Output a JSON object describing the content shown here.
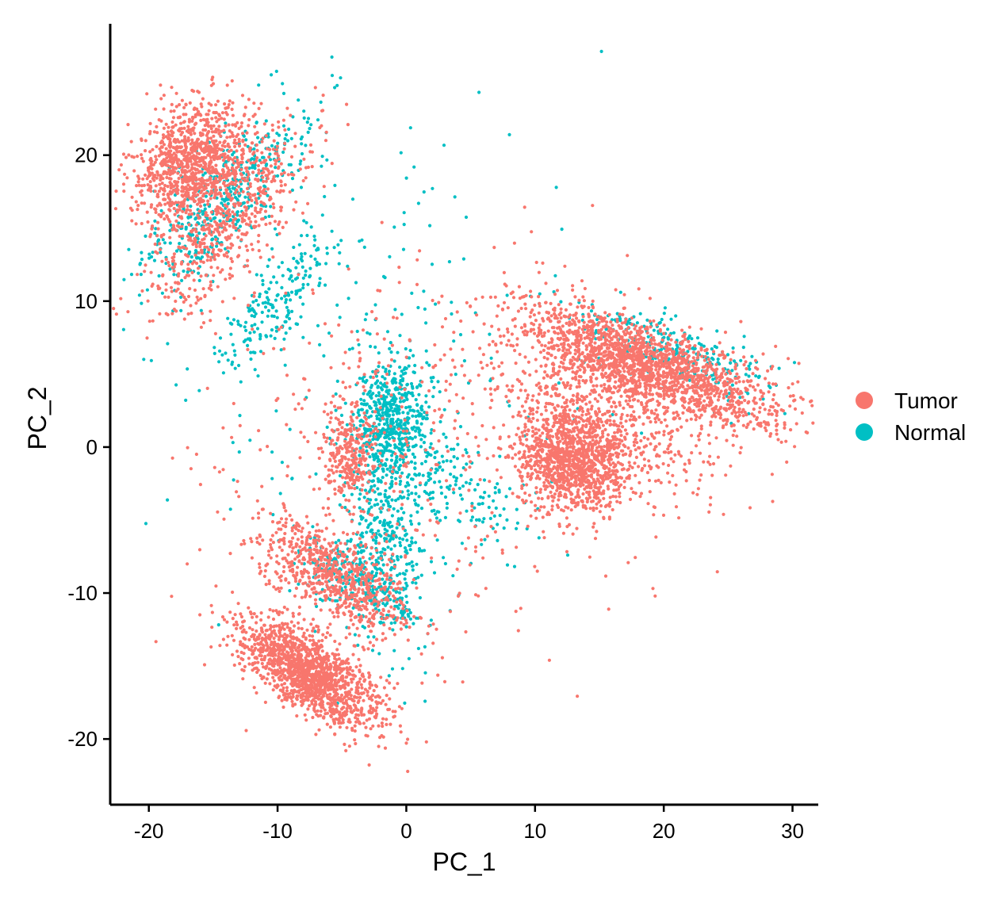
{
  "chart_data": {
    "type": "scatter",
    "title": "",
    "xlabel": "PC_1",
    "ylabel": "PC_2",
    "xlim": [
      -23,
      32
    ],
    "ylim": [
      -24.5,
      29
    ],
    "xticks": [
      -20,
      -10,
      0,
      10,
      20,
      30
    ],
    "yticks": [
      -20,
      -10,
      0,
      10,
      20
    ],
    "xtick_labels": [
      "-20",
      "-10",
      "0",
      "10",
      "20",
      "30"
    ],
    "ytick_labels": [
      "-20",
      "-10",
      "0",
      "10",
      "20"
    ],
    "grid": false,
    "legend": {
      "position": "right",
      "entries": [
        "Tumor",
        "Normal"
      ]
    },
    "series": [
      {
        "name": "Tumor",
        "color": "#F8766D",
        "clusters": [
          {
            "center": [
              -16.5,
              19.5
            ],
            "spread": [
              1.8,
              2.4
            ],
            "angle": -50,
            "n": 1100
          },
          {
            "center": [
              -13.5,
              15.5
            ],
            "spread": [
              1.5,
              4.0
            ],
            "angle": -45,
            "n": 500
          },
          {
            "center": [
              -7.5,
              -15.5
            ],
            "spread": [
              1.2,
              3.0
            ],
            "angle": 60,
            "n": 1500
          },
          {
            "center": [
              -5.5,
              -9.0
            ],
            "spread": [
              1.4,
              3.2
            ],
            "angle": 60,
            "n": 700
          },
          {
            "center": [
              -4.5,
              -0.5
            ],
            "spread": [
              1.0,
              1.5
            ],
            "angle": 0,
            "n": 250
          },
          {
            "center": [
              19.0,
              5.5
            ],
            "spread": [
              1.3,
              5.0
            ],
            "angle": 72,
            "n": 1600
          },
          {
            "center": [
              13.0,
              -1.0
            ],
            "spread": [
              1.8,
              2.3
            ],
            "angle": 80,
            "n": 1200
          },
          {
            "center": [
              16.0,
              3.0
            ],
            "spread": [
              3.0,
              5.0
            ],
            "angle": 70,
            "n": 700
          },
          {
            "center": [
              0.0,
              0.0
            ],
            "spread": [
              8.0,
              7.0
            ],
            "angle": 0,
            "n": 450
          }
        ]
      },
      {
        "name": "Normal",
        "color": "#00BFC4",
        "clusters": [
          {
            "center": [
              -14.0,
              17.0
            ],
            "spread": [
              1.6,
              4.5
            ],
            "angle": -48,
            "n": 450
          },
          {
            "center": [
              -10.0,
              10.0
            ],
            "spread": [
              1.2,
              3.0
            ],
            "angle": -45,
            "n": 200
          },
          {
            "center": [
              -1.0,
              2.0
            ],
            "spread": [
              1.4,
              2.0
            ],
            "angle": 0,
            "n": 500
          },
          {
            "center": [
              -1.5,
              -5.5
            ],
            "spread": [
              1.5,
              4.0
            ],
            "angle": 10,
            "n": 400
          },
          {
            "center": [
              -4.0,
              -9.0
            ],
            "spread": [
              1.2,
              2.5
            ],
            "angle": 60,
            "n": 250
          },
          {
            "center": [
              4.0,
              -3.0
            ],
            "spread": [
              1.5,
              3.5
            ],
            "angle": 65,
            "n": 150
          },
          {
            "center": [
              21.0,
              6.5
            ],
            "spread": [
              1.0,
              4.0
            ],
            "angle": 72,
            "n": 250
          },
          {
            "center": [
              0.0,
              5.0
            ],
            "spread": [
              8.0,
              8.0
            ],
            "angle": 0,
            "n": 200
          }
        ]
      }
    ]
  }
}
